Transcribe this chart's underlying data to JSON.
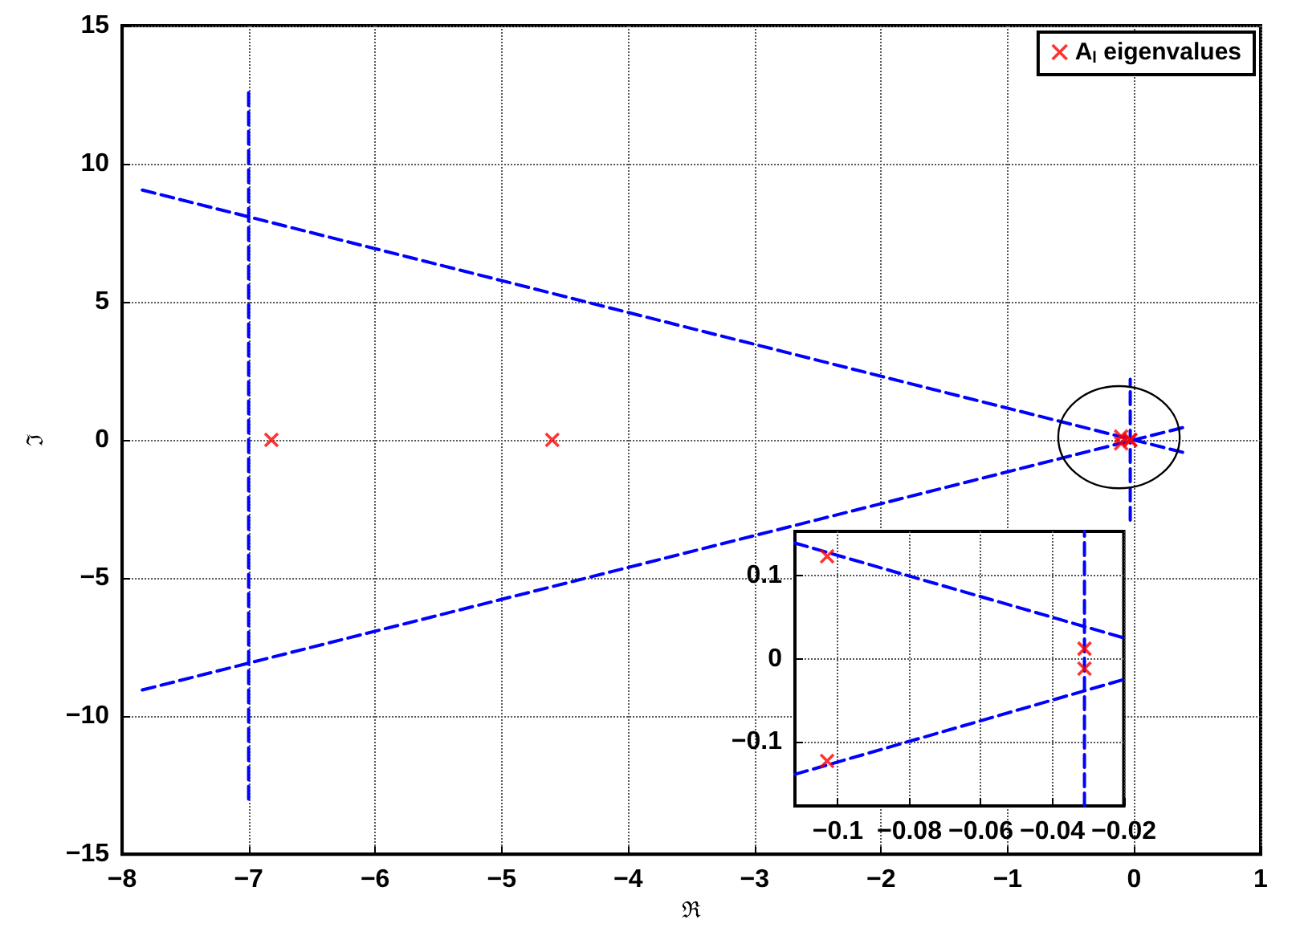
{
  "chart_data": [
    {
      "type": "scatter",
      "xlabel": "ℜ",
      "ylabel": "ℑ",
      "xlim": [
        -8,
        1
      ],
      "ylim": [
        -15,
        15
      ],
      "xticks": [
        -8,
        -7,
        -6,
        -5,
        -4,
        -3,
        -2,
        -1,
        0,
        1
      ],
      "yticks": [
        -15,
        -10,
        -5,
        0,
        5,
        10,
        15
      ],
      "grid": true,
      "legend": "top right",
      "marker": "cross",
      "series": [
        {
          "name": "A$_{l}$ eigenvalues",
          "color": "#ff0000",
          "x": [
            -6.82,
            -4.6,
            -0.103,
            -0.103,
            -0.031,
            -0.031
          ],
          "values": [
            0,
            0,
            0.123,
            -0.123,
            0.012,
            -0.012
          ]
        },
        {
          "type": "line",
          "color": "#0000ff",
          "line_style": "dashed",
          "marker": "none",
          "x": [
            -7,
            -7
          ],
          "values": [
            -13,
            12.7
          ]
        },
        {
          "type": "line",
          "color": "#0000ff",
          "line_style": "dashed",
          "marker": "none",
          "x": [
            -7.84,
            0.43
          ],
          "values": [
            9.05,
            -0.5
          ]
        },
        {
          "type": "line",
          "color": "#0000ff",
          "line_style": "dashed",
          "marker": "none",
          "x": [
            -7.84,
            0.43
          ],
          "values": [
            -9.05,
            0.5
          ]
        },
        {
          "type": "line",
          "color": "#0000ff",
          "line_style": "dashed",
          "marker": "none",
          "x": [
            -0.031,
            -0.031
          ],
          "values": [
            -2.9,
            2.2
          ]
        }
      ]
    },
    {
      "type": "scatter",
      "xlim": [
        -0.112,
        -0.02
      ],
      "ylim": [
        -0.177,
        0.153
      ],
      "xticks": [
        -0.1,
        -0.08,
        -0.06,
        -0.04,
        -0.02
      ],
      "yticks": [
        -0.1,
        0,
        0.1
      ],
      "grid": true,
      "marker": "cross",
      "series": [
        {
          "color": "#ff0000",
          "x": [
            -0.103,
            -0.103,
            -0.031,
            -0.031
          ],
          "values": [
            0.123,
            -0.123,
            0.012,
            -0.012
          ]
        },
        {
          "type": "line",
          "color": "#0000ff",
          "line_style": "dashed",
          "marker": "none",
          "x": [
            -0.112,
            -0.02
          ],
          "values": [
            0.139,
            0.025
          ]
        },
        {
          "type": "line",
          "color": "#0000ff",
          "line_style": "dashed",
          "marker": "none",
          "x": [
            -0.112,
            -0.02
          ],
          "values": [
            -0.139,
            -0.025
          ]
        },
        {
          "type": "line",
          "color": "#0000ff",
          "line_style": "dashed",
          "marker": "none",
          "x": [
            -0.031,
            -0.031
          ],
          "values": [
            -0.177,
            0.153
          ]
        }
      ]
    }
  ]
}
